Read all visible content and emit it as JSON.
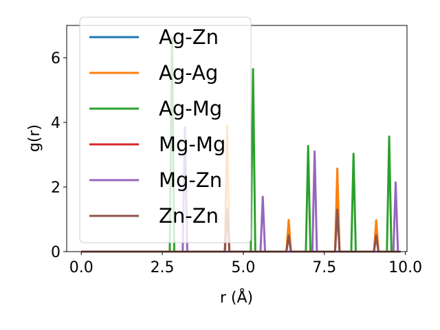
{
  "chart_data": {
    "type": "line",
    "xlabel": "r (Å)",
    "ylabel": "g(r)",
    "xlim": [
      -0.45,
      10.05
    ],
    "ylim": [
      0,
      7.0
    ],
    "xticks": [
      0.0,
      2.5,
      5.0,
      7.5,
      10.0
    ],
    "xtick_labels": [
      "0.0",
      "2.5",
      "5.0",
      "7.5",
      "10.0"
    ],
    "yticks": [
      0,
      2,
      4,
      6
    ],
    "ytick_labels": [
      "0",
      "2",
      "4",
      "6"
    ],
    "grid": false,
    "legend_position": "top-left",
    "series": [
      {
        "name": "Ag-Zn",
        "color": "#1f77b4",
        "peaks": []
      },
      {
        "name": "Ag-Ag",
        "color": "#ff7f0e",
        "peaks": [
          {
            "r": 4.5,
            "g": 3.9
          },
          {
            "r": 6.4,
            "g": 0.98
          },
          {
            "r": 7.9,
            "g": 2.57
          },
          {
            "r": 9.1,
            "g": 0.97
          }
        ]
      },
      {
        "name": "Ag-Mg",
        "color": "#2ca02c",
        "peaks": [
          {
            "r": 2.8,
            "g": 6.65
          },
          {
            "r": 5.3,
            "g": 5.65
          },
          {
            "r": 7.0,
            "g": 3.27
          },
          {
            "r": 8.4,
            "g": 3.03
          },
          {
            "r": 9.5,
            "g": 3.56
          }
        ]
      },
      {
        "name": "Mg-Mg",
        "color": "#d62728",
        "peaks": [
          {
            "r": 4.5,
            "g": 1.3
          },
          {
            "r": 6.4,
            "g": 0.5
          },
          {
            "r": 7.9,
            "g": 1.3
          },
          {
            "r": 9.1,
            "g": 0.5
          }
        ]
      },
      {
        "name": "Mg-Zn",
        "color": "#9467bd",
        "peaks": [
          {
            "r": 3.2,
            "g": 3.85
          },
          {
            "r": 5.6,
            "g": 1.7
          },
          {
            "r": 7.2,
            "g": 3.1
          },
          {
            "r": 9.7,
            "g": 2.14
          }
        ]
      },
      {
        "name": "Zn-Zn",
        "color": "#8c564b",
        "peaks": [
          {
            "r": 4.5,
            "g": 1.3
          },
          {
            "r": 6.4,
            "g": 0.5
          },
          {
            "r": 7.9,
            "g": 1.3
          },
          {
            "r": 9.1,
            "g": 0.5
          }
        ]
      }
    ]
  }
}
